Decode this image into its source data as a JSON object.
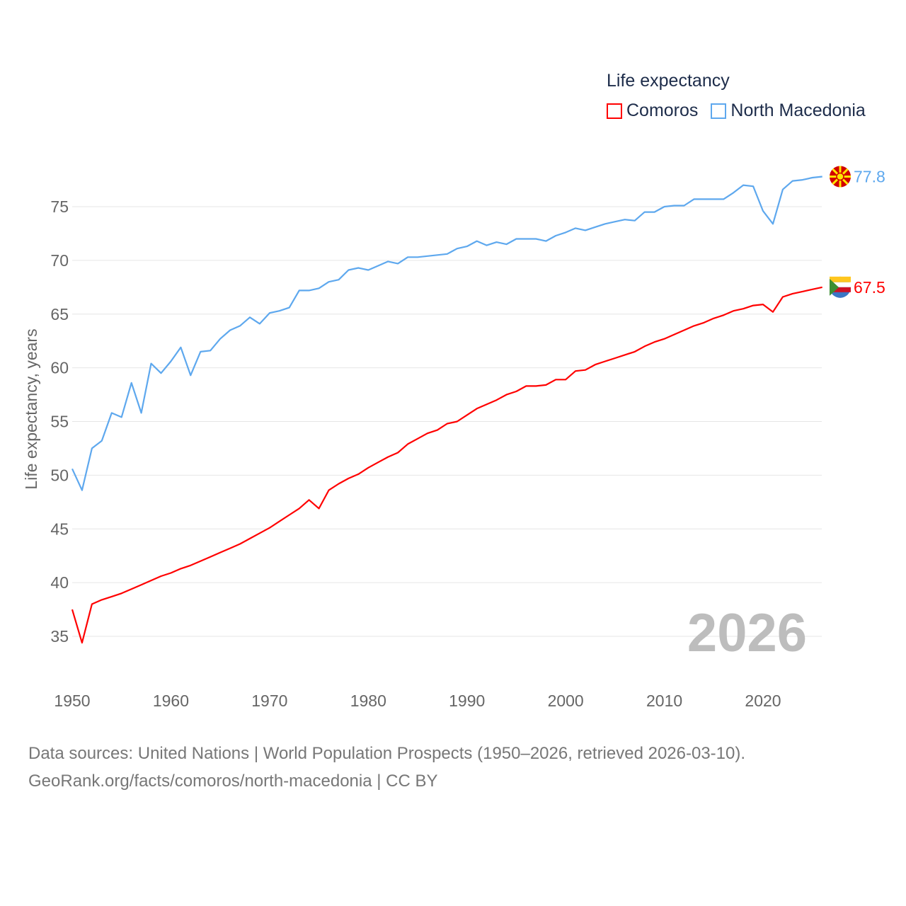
{
  "chart_data": {
    "type": "line",
    "legend_title": "Life expectancy",
    "ylabel": "Life expectancy, years",
    "xlabel": "",
    "ylim": [
      32,
      80
    ],
    "xlim": [
      1950,
      2026
    ],
    "yticks": [
      35,
      40,
      45,
      50,
      55,
      60,
      65,
      70,
      75
    ],
    "xticks": [
      1950,
      1960,
      1970,
      1980,
      1990,
      2000,
      2010,
      2020
    ],
    "grid": true,
    "legend_position": "top-right",
    "year_watermark": "2026",
    "x_start": 1950,
    "series": [
      {
        "name": "Comoros",
        "color": "#ff0000",
        "end_label": "67.5",
        "values": [
          37.5,
          34.4,
          38.0,
          38.4,
          38.7,
          39.0,
          39.4,
          39.8,
          40.2,
          40.6,
          40.9,
          41.3,
          41.6,
          42.0,
          42.4,
          42.8,
          43.2,
          43.6,
          44.1,
          44.6,
          45.1,
          45.7,
          46.3,
          46.9,
          47.7,
          46.9,
          48.6,
          49.2,
          49.7,
          50.1,
          50.7,
          51.2,
          51.7,
          52.1,
          52.9,
          53.4,
          53.9,
          54.2,
          54.8,
          55.0,
          55.6,
          56.2,
          56.6,
          57.0,
          57.5,
          57.8,
          58.3,
          58.3,
          58.4,
          58.9,
          58.9,
          59.7,
          59.8,
          60.3,
          60.6,
          60.9,
          61.2,
          61.5,
          62.0,
          62.4,
          62.7,
          63.1,
          63.5,
          63.9,
          64.2,
          64.6,
          64.9,
          65.3,
          65.5,
          65.8,
          65.9,
          65.2,
          66.6,
          66.9,
          67.1,
          67.3,
          67.5
        ]
      },
      {
        "name": "North Macedonia",
        "color": "#5ea8ee",
        "end_label": "77.8",
        "values": [
          50.6,
          48.6,
          52.5,
          53.2,
          55.8,
          55.4,
          58.6,
          55.8,
          60.4,
          59.5,
          60.6,
          61.9,
          59.3,
          61.5,
          61.6,
          62.7,
          63.5,
          63.9,
          64.7,
          64.1,
          65.1,
          65.3,
          65.6,
          67.2,
          67.2,
          67.4,
          68.0,
          68.2,
          69.1,
          69.3,
          69.1,
          69.5,
          69.9,
          69.7,
          70.3,
          70.3,
          70.4,
          70.5,
          70.6,
          71.1,
          71.3,
          71.8,
          71.4,
          71.7,
          71.5,
          72.0,
          72.0,
          72.0,
          71.8,
          72.3,
          72.6,
          73.0,
          72.8,
          73.1,
          73.4,
          73.6,
          73.8,
          73.7,
          74.5,
          74.5,
          75.0,
          75.1,
          75.1,
          75.7,
          75.7,
          75.7,
          75.7,
          76.3,
          77.0,
          76.9,
          74.6,
          73.4,
          76.6,
          77.4,
          77.5,
          77.7,
          77.8
        ]
      }
    ]
  },
  "source": {
    "line1": "Data sources: United Nations | World Population Prospects (1950–2026, retrieved 2026-03-10).",
    "line2": "GeoRank.org/facts/comoros/north-macedonia | CC BY"
  }
}
